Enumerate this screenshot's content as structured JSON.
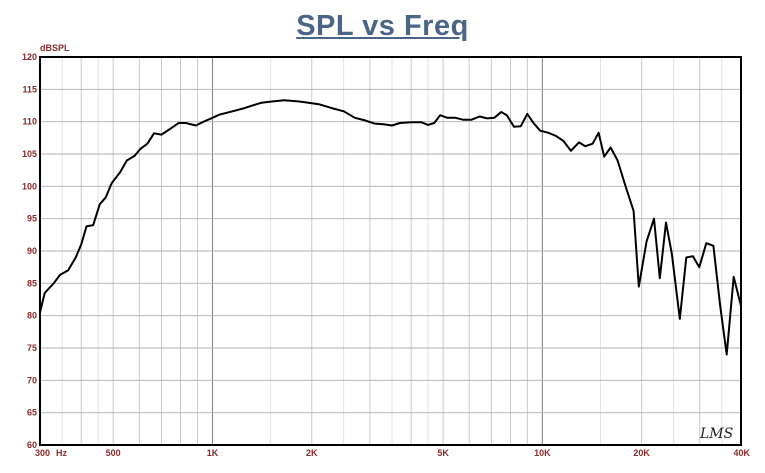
{
  "title": "SPL vs Freq",
  "watermark": "LMS",
  "colors": {
    "title": "#4a6585",
    "tick_labels": "#8b2a2a",
    "curve": "#000000",
    "grid": "#b0b0b0",
    "frame": "#000000"
  },
  "chart_data": {
    "type": "line",
    "title": "SPL vs Freq",
    "ylabel": "dBSPL",
    "xlabel": "Hz",
    "x_scale": "log",
    "grid": true,
    "xlim": [
      300,
      40000
    ],
    "ylim": [
      60,
      120
    ],
    "y_ticks": [
      60,
      65,
      70,
      75,
      80,
      85,
      90,
      95,
      100,
      105,
      110,
      115,
      120
    ],
    "x_ticks": [
      {
        "value": 300,
        "label": "300"
      },
      {
        "value": 500,
        "label": "500"
      },
      {
        "value": 1000,
        "label": "1K"
      },
      {
        "value": 2000,
        "label": "2K"
      },
      {
        "value": 5000,
        "label": "5K"
      },
      {
        "value": 10000,
        "label": "10K"
      },
      {
        "value": 20000,
        "label": "20K"
      },
      {
        "value": 40000,
        "label": "40K"
      }
    ],
    "series": [
      {
        "points": [
          [
            300,
            80.5
          ],
          [
            310,
            83.5
          ],
          [
            330,
            85.0
          ],
          [
            345,
            86.3
          ],
          [
            365,
            87.0
          ],
          [
            385,
            89.0
          ],
          [
            400,
            91.0
          ],
          [
            415,
            93.8
          ],
          [
            435,
            94.0
          ],
          [
            455,
            97.2
          ],
          [
            475,
            98.3
          ],
          [
            495,
            100.5
          ],
          [
            525,
            102.2
          ],
          [
            550,
            104.0
          ],
          [
            580,
            104.7
          ],
          [
            605,
            105.8
          ],
          [
            635,
            106.6
          ],
          [
            665,
            108.2
          ],
          [
            700,
            108.0
          ],
          [
            740,
            108.8
          ],
          [
            790,
            109.8
          ],
          [
            830,
            109.8
          ],
          [
            890,
            109.4
          ],
          [
            940,
            110.0
          ],
          [
            990,
            110.5
          ],
          [
            1050,
            111.1
          ],
          [
            1150,
            111.6
          ],
          [
            1250,
            112.1
          ],
          [
            1400,
            112.9
          ],
          [
            1500,
            113.1
          ],
          [
            1650,
            113.3
          ],
          [
            1850,
            113.1
          ],
          [
            2100,
            112.7
          ],
          [
            2300,
            112.1
          ],
          [
            2500,
            111.6
          ],
          [
            2700,
            110.6
          ],
          [
            2900,
            110.2
          ],
          [
            3100,
            109.7
          ],
          [
            3300,
            109.6
          ],
          [
            3500,
            109.4
          ],
          [
            3700,
            109.8
          ],
          [
            4000,
            109.9
          ],
          [
            4300,
            109.9
          ],
          [
            4500,
            109.5
          ],
          [
            4700,
            109.8
          ],
          [
            4900,
            111.0
          ],
          [
            5150,
            110.6
          ],
          [
            5450,
            110.6
          ],
          [
            5750,
            110.3
          ],
          [
            6100,
            110.3
          ],
          [
            6450,
            110.8
          ],
          [
            6800,
            110.5
          ],
          [
            7150,
            110.6
          ],
          [
            7500,
            111.5
          ],
          [
            7800,
            111.0
          ],
          [
            8200,
            109.2
          ],
          [
            8600,
            109.3
          ],
          [
            9000,
            111.2
          ],
          [
            9400,
            109.8
          ],
          [
            9850,
            108.6
          ],
          [
            10400,
            108.3
          ],
          [
            11000,
            107.8
          ],
          [
            11600,
            107.0
          ],
          [
            12200,
            105.5
          ],
          [
            12900,
            106.8
          ],
          [
            13500,
            106.2
          ],
          [
            14200,
            106.6
          ],
          [
            14800,
            108.3
          ],
          [
            15400,
            104.6
          ],
          [
            16100,
            106.0
          ],
          [
            16900,
            104.0
          ],
          [
            17900,
            99.9
          ],
          [
            18900,
            96.2
          ],
          [
            19600,
            84.5
          ],
          [
            20700,
            91.5
          ],
          [
            21800,
            95.0
          ],
          [
            22700,
            85.8
          ],
          [
            23700,
            94.4
          ],
          [
            24700,
            89.5
          ],
          [
            26100,
            79.5
          ],
          [
            27300,
            89.0
          ],
          [
            28600,
            89.2
          ],
          [
            29900,
            87.5
          ],
          [
            31400,
            91.2
          ],
          [
            33000,
            90.8
          ],
          [
            34600,
            81.5
          ],
          [
            36200,
            74.0
          ],
          [
            38000,
            86.0
          ],
          [
            40000,
            81.5
          ]
        ]
      }
    ]
  }
}
